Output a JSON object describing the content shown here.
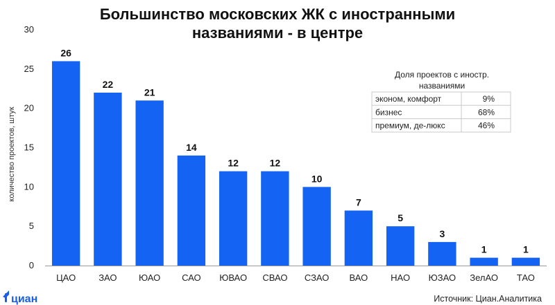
{
  "title_lines": [
    "Большинство московских ЖК с иностранными",
    "названиями - в центре"
  ],
  "chart_data": {
    "type": "bar",
    "title": "Большинство московских ЖК с иностранными названиями - в центре",
    "xlabel": "",
    "ylabel": "количество проектов, штук",
    "ylim": [
      0,
      30
    ],
    "yticks": [
      0,
      5,
      10,
      15,
      20,
      25,
      30
    ],
    "grid": false,
    "categories": [
      "ЦАО",
      "ЗАО",
      "ЮАО",
      "САО",
      "ЮВАО",
      "СВАО",
      "СЗАО",
      "ВАО",
      "НАО",
      "ЮЗАО",
      "ЗелАО",
      "ТАО"
    ],
    "values": [
      26,
      22,
      21,
      14,
      12,
      12,
      10,
      7,
      5,
      3,
      1,
      1
    ],
    "bar_color": "#1463f3"
  },
  "inset_table": {
    "title_lines": [
      "Доля проектов с иностр.",
      "названиями"
    ],
    "rows": [
      [
        "эконом, комфорт",
        "9%"
      ],
      [
        "бизнес",
        "68%"
      ],
      [
        "премиум, де-люкс",
        "46%"
      ]
    ]
  },
  "logo": {
    "text": "циан",
    "color": "#1a5ee8"
  },
  "source": "Источник: Циан.Аналитика"
}
